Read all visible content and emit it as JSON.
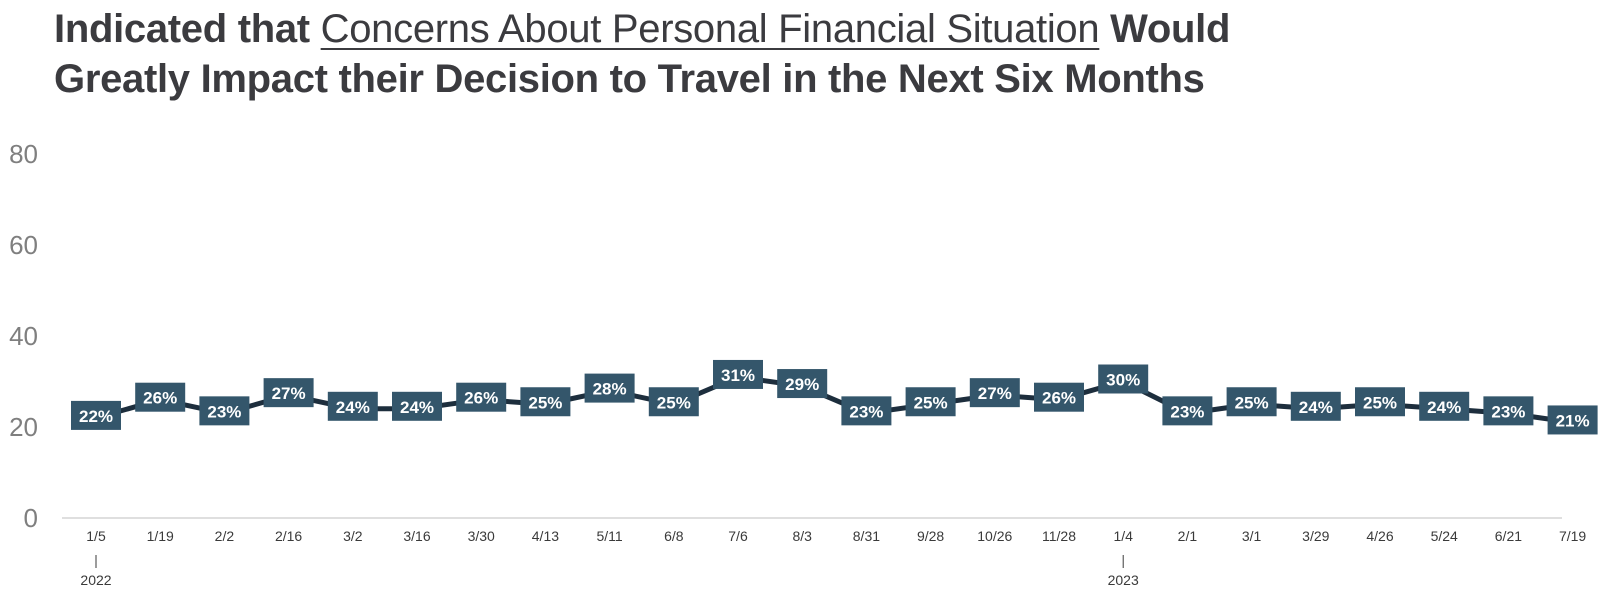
{
  "title": {
    "prefix": "Indicated that ",
    "highlight": "Concerns About Personal Financial Situation",
    "suffix_line1": " Would",
    "line2": "Greatly Impact their Decision to Travel in the Next Six Months"
  },
  "colors": {
    "line": "#1d2e3d",
    "label_box": "#34566b",
    "label_text": "#ffffff",
    "axis_text": "#7f7f7f",
    "tick_text": "#3a3a3a"
  },
  "chart_data": {
    "type": "line",
    "title": "Indicated that Concerns About Personal Financial Situation Would Greatly Impact their Decision to Travel in the Next Six Months",
    "categories": [
      "1/5",
      "1/19",
      "2/2",
      "2/16",
      "3/2",
      "3/16",
      "3/30",
      "4/13",
      "5/11",
      "6/8",
      "7/6",
      "8/3",
      "8/31",
      "9/28",
      "10/26",
      "11/28",
      "1/4",
      "2/1",
      "3/1",
      "3/29",
      "4/26",
      "5/24",
      "6/21",
      "7/19"
    ],
    "year_markers": [
      {
        "index": 0,
        "label": "2022"
      },
      {
        "index": 16,
        "label": "2023"
      }
    ],
    "series": [
      {
        "values": [
          22,
          26,
          23,
          27,
          24,
          24,
          26,
          25,
          28,
          25,
          31,
          29,
          23,
          25,
          27,
          26,
          30,
          23,
          25,
          24,
          25,
          24,
          23,
          21
        ]
      }
    ],
    "data_labels": [
      "22%",
      "26%",
      "23%",
      "27%",
      "24%",
      "24%",
      "26%",
      "25%",
      "28%",
      "25%",
      "31%",
      "29%",
      "23%",
      "25%",
      "27%",
      "26%",
      "30%",
      "23%",
      "25%",
      "24%",
      "25%",
      "24%",
      "23%",
      "21%"
    ],
    "yticks": [
      "0",
      "20",
      "40",
      "60",
      "80"
    ],
    "ylim": [
      0,
      80
    ],
    "xlabel": "",
    "ylabel": "",
    "grid": false,
    "legend": "none"
  }
}
